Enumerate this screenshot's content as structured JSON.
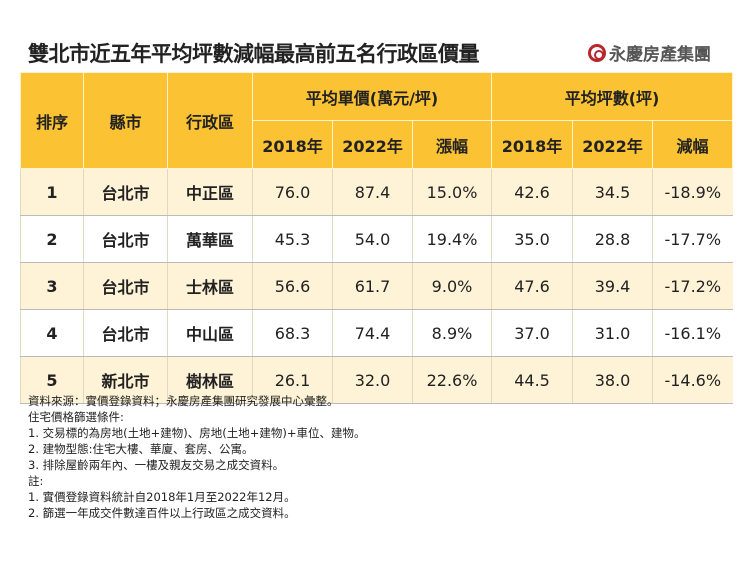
{
  "title": "雙北市近五年平均坪數減幅最高前五名行政區價量",
  "logo": "永慶房產集團",
  "header": {
    "rank": "排序",
    "city": "縣市",
    "district": "行政區",
    "price_group": "平均單價(萬元/坪)",
    "size_group": "平均坪數(坪)",
    "y2018": "2018年",
    "y2022": "2022年",
    "increase": "漲幅",
    "decrease": "減幅"
  },
  "rows": [
    {
      "rank": "1",
      "city": "台北市",
      "district": "中正區",
      "p2018": "76.0",
      "p2022": "87.4",
      "pchg": "15.0%",
      "s2018": "42.6",
      "s2022": "34.5",
      "schg": "-18.9%"
    },
    {
      "rank": "2",
      "city": "台北市",
      "district": "萬華區",
      "p2018": "45.3",
      "p2022": "54.0",
      "pchg": "19.4%",
      "s2018": "35.0",
      "s2022": "28.8",
      "schg": "-17.7%"
    },
    {
      "rank": "3",
      "city": "台北市",
      "district": "士林區",
      "p2018": "56.6",
      "p2022": "61.7",
      "pchg": "9.0%",
      "s2018": "47.6",
      "s2022": "39.4",
      "schg": "-17.2%"
    },
    {
      "rank": "4",
      "city": "台北市",
      "district": "中山區",
      "p2018": "68.3",
      "p2022": "74.4",
      "pchg": "8.9%",
      "s2018": "37.0",
      "s2022": "31.0",
      "schg": "-16.1%"
    },
    {
      "rank": "5",
      "city": "新北市",
      "district": "樹林區",
      "p2018": "26.1",
      "p2022": "32.0",
      "pchg": "22.6%",
      "s2018": "44.5",
      "s2022": "38.0",
      "schg": "-14.6%"
    }
  ],
  "notes": [
    "資料來源：實價登錄資料；永慶房產集團研究發展中心彙整。",
    "住宅價格篩選條件:",
    "1. 交易標的為房地(土地+建物)、房地(土地+建物)+車位、建物。",
    "2. 建物型態:住宅大樓、華廈、套房、公寓。",
    "3. 排除屋齡兩年內、一樓及親友交易之成交資料。",
    "註:",
    "1. 實價登錄資料統計自2018年1月至2022年12月。",
    "2. 篩選一年成交件數達百件以上行政區之成交資料。"
  ],
  "colors": {
    "header": "#FBC233",
    "odd_row": "#FEF3D6",
    "logo": "#b8262e"
  }
}
